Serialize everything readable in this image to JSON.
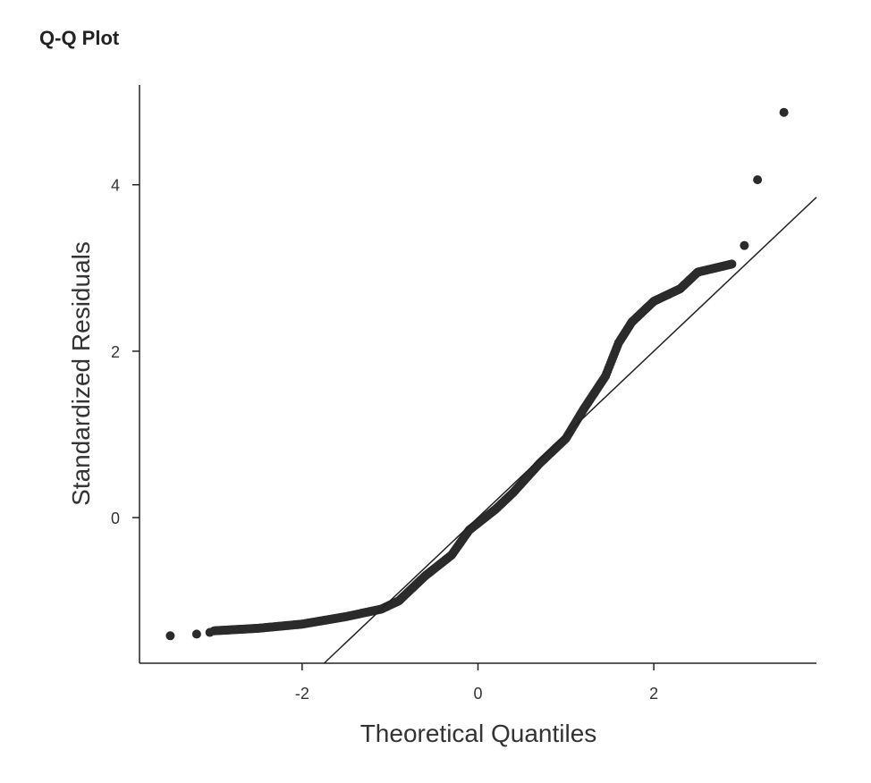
{
  "chart_data": {
    "type": "scatter",
    "title": "Q-Q Plot",
    "xlabel": "Theoretical Quantiles",
    "ylabel": "Standardized Residuals",
    "xlim": [
      -3.85,
      3.85
    ],
    "ylim": [
      -1.75,
      5.2
    ],
    "xticks": [
      -2,
      0,
      2
    ],
    "yticks": [
      0,
      2,
      4
    ],
    "grid": false,
    "point_color": "#2b2b2b",
    "line_color": "#222222",
    "reference_line": {
      "slope": 1.0,
      "intercept": 0.0
    },
    "curve_anchors": [
      [
        -3.0,
        -1.36
      ],
      [
        -2.5,
        -1.33
      ],
      [
        -2.0,
        -1.28
      ],
      [
        -1.5,
        -1.19
      ],
      [
        -1.1,
        -1.1
      ],
      [
        -0.9,
        -1.0
      ],
      [
        -0.6,
        -0.7
      ],
      [
        -0.3,
        -0.45
      ],
      [
        -0.1,
        -0.15
      ],
      [
        0.2,
        0.1
      ],
      [
        0.4,
        0.3
      ],
      [
        0.7,
        0.65
      ],
      [
        1.0,
        0.95
      ],
      [
        1.2,
        1.3
      ],
      [
        1.45,
        1.7
      ],
      [
        1.6,
        2.1
      ],
      [
        1.75,
        2.35
      ],
      [
        2.0,
        2.6
      ],
      [
        2.3,
        2.75
      ],
      [
        2.5,
        2.95
      ],
      [
        2.9,
        3.05
      ]
    ],
    "points": [
      {
        "x": -3.5,
        "y": -1.42
      },
      {
        "x": -3.2,
        "y": -1.4
      },
      {
        "x": -3.05,
        "y": -1.38
      },
      {
        "x": 3.03,
        "y": 3.27
      },
      {
        "x": 3.18,
        "y": 4.06
      },
      {
        "x": 3.48,
        "y": 4.87
      }
    ]
  }
}
